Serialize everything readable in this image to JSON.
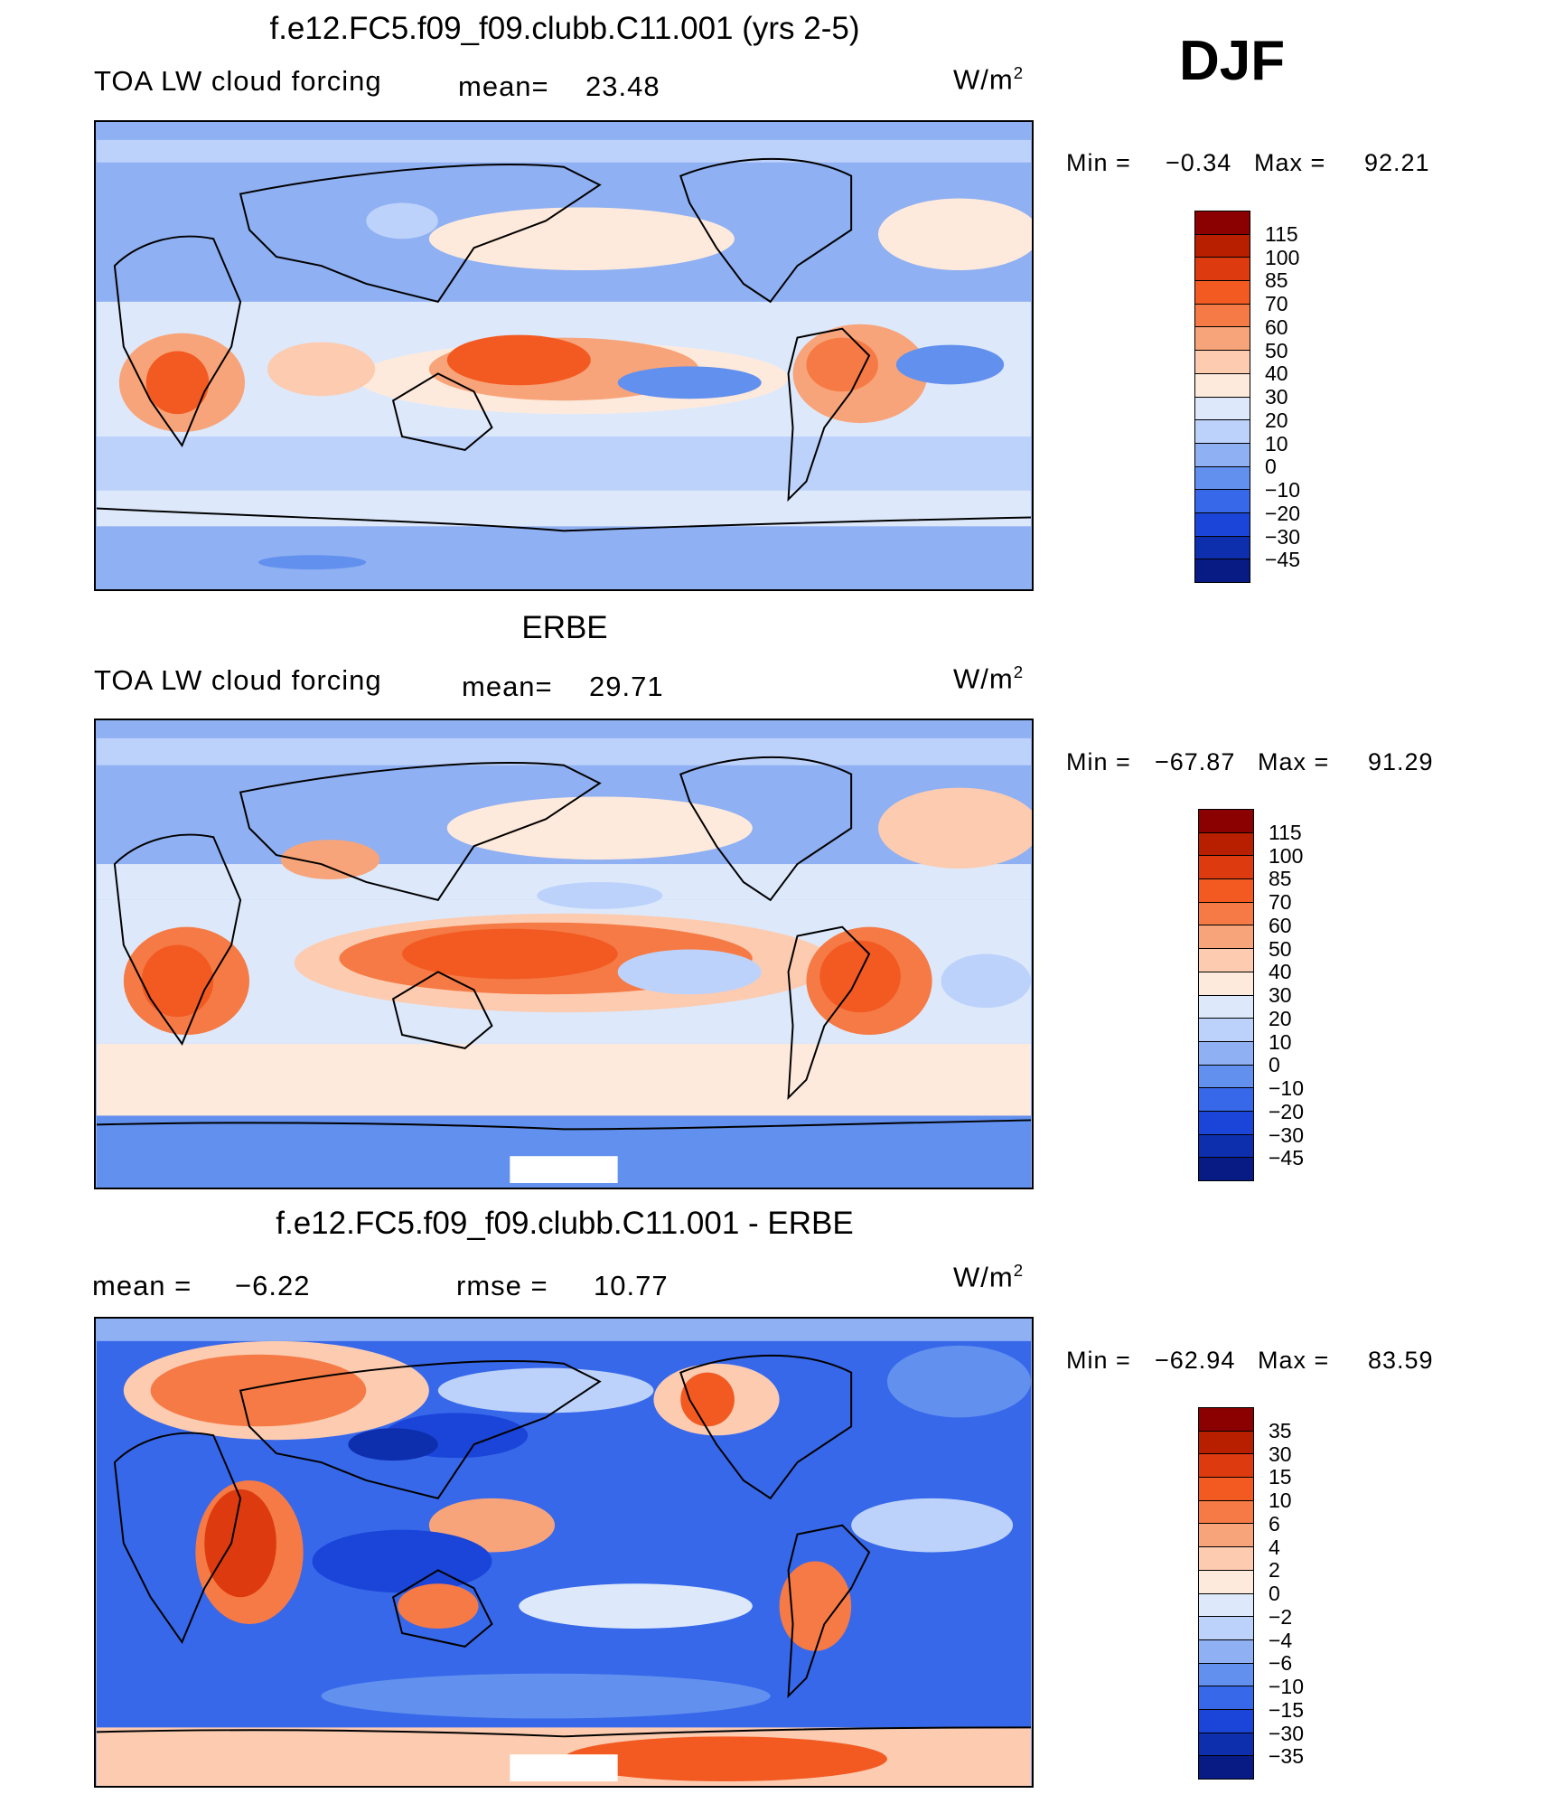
{
  "season": "DJF",
  "units_base": "W/m",
  "units_exp": "2",
  "panels": [
    {
      "title": "f.e12.FC5.f09_f09.clubb.C11.001 (yrs 2-5)",
      "variable": "TOA LW cloud forcing",
      "stat_a_label": "mean=",
      "stat_a_value": "23.48",
      "min_label": "Min =",
      "min_value": "−0.34",
      "max_label": "Max =",
      "max_value": "92.21",
      "levels": [
        "115",
        "100",
        "85",
        "70",
        "60",
        "50",
        "40",
        "30",
        "20",
        "10",
        "0",
        "−10",
        "−20",
        "−30",
        "−45"
      ],
      "colors": [
        "#8b0000",
        "#b81f00",
        "#dd3a0f",
        "#f25a22",
        "#f57a45",
        "#f8a47a",
        "#fccbb0",
        "#feeadc",
        "#dde9fb",
        "#bdd2fb",
        "#8fb0f2",
        "#6290ee",
        "#3768ea",
        "#1a45d8",
        "#0d2fae",
        "#081b85"
      ]
    },
    {
      "title": "ERBE",
      "variable": "TOA LW cloud forcing",
      "stat_a_label": "mean=",
      "stat_a_value": "29.71",
      "min_label": "Min =",
      "min_value": "−67.87",
      "max_label": "Max =",
      "max_value": "91.29",
      "levels": [
        "115",
        "100",
        "85",
        "70",
        "60",
        "50",
        "40",
        "30",
        "20",
        "10",
        "0",
        "−10",
        "−20",
        "−30",
        "−45"
      ],
      "colors": [
        "#8b0000",
        "#b81f00",
        "#dd3a0f",
        "#f25a22",
        "#f57a45",
        "#f8a47a",
        "#fccbb0",
        "#feeadc",
        "#dde9fb",
        "#bdd2fb",
        "#8fb0f2",
        "#6290ee",
        "#3768ea",
        "#1a45d8",
        "#0d2fae",
        "#081b85"
      ]
    },
    {
      "title": "f.e12.FC5.f09_f09.clubb.C11.001 - ERBE",
      "stat_a_label": "mean =",
      "stat_a_value": "−6.22",
      "stat_b_label": "rmse =",
      "stat_b_value": "10.77",
      "min_label": "Min =",
      "min_value": "−62.94",
      "max_label": "Max =",
      "max_value": "83.59",
      "levels": [
        "35",
        "30",
        "15",
        "10",
        "6",
        "4",
        "2",
        "0",
        "−2",
        "−4",
        "−6",
        "−10",
        "−15",
        "−30",
        "−35"
      ],
      "colors": [
        "#8b0000",
        "#b81f00",
        "#dd3a0f",
        "#f25a22",
        "#f57a45",
        "#f8a47a",
        "#fccbb0",
        "#feeadc",
        "#dde9fb",
        "#bdd2fb",
        "#8fb0f2",
        "#6290ee",
        "#3768ea",
        "#1a45d8",
        "#0d2fae",
        "#081b85"
      ]
    }
  ]
}
